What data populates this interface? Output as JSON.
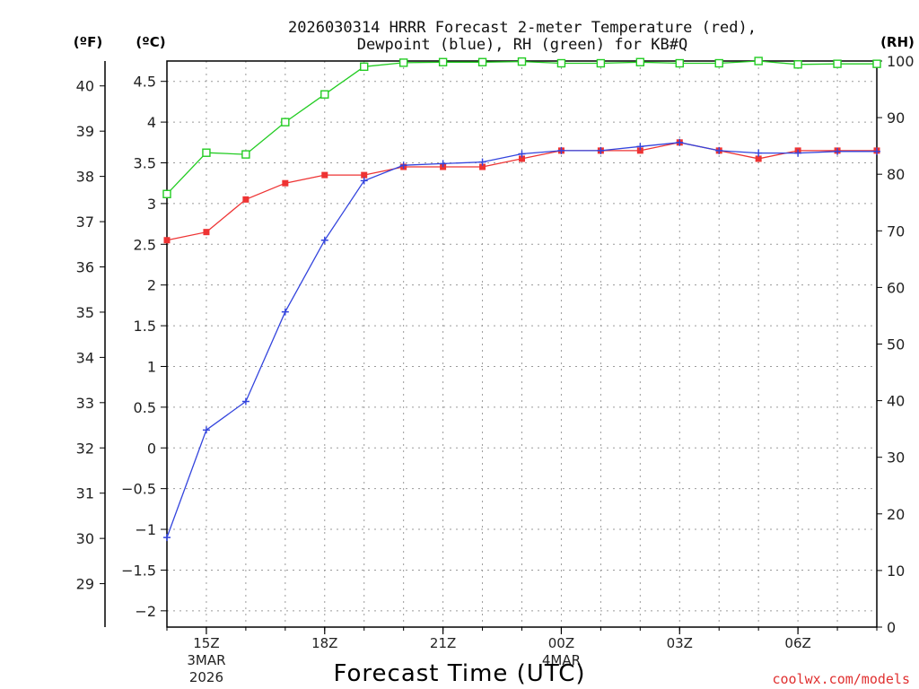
{
  "chart_data": {
    "type": "line",
    "title_line1": "2026030314 HRRR Forecast 2-meter Temperature (red),",
    "title_line2": "Dewpoint (blue), RH (green) for KB#Q",
    "xlabel": "Forecast Time (UTC)",
    "credit": "coolwx.com/models",
    "units": {
      "fahrenheit": "(ºF)",
      "celsius": "(ºC)",
      "rh": "(RH)"
    },
    "xlim_hours": [
      0,
      18
    ],
    "ylim_c": [
      -2.2,
      4.75
    ],
    "ylim_rh": [
      0,
      100
    ],
    "celsius_ticks": [
      -2,
      -1.5,
      -1,
      -0.5,
      0,
      0.5,
      1,
      1.5,
      2,
      2.5,
      3,
      3.5,
      4,
      4.5
    ],
    "fahrenheit_ticks": [
      29,
      30,
      31,
      32,
      33,
      34,
      35,
      36,
      37,
      38,
      39,
      40
    ],
    "rh_ticks": [
      0,
      10,
      20,
      30,
      40,
      50,
      60,
      70,
      80,
      90,
      100
    ],
    "x_ticks": [
      {
        "hour": 1,
        "label": "15Z",
        "sub1": "3MAR",
        "sub2": "2026"
      },
      {
        "hour": 4,
        "label": "18Z",
        "sub1": "",
        "sub2": ""
      },
      {
        "hour": 7,
        "label": "21Z",
        "sub1": "",
        "sub2": ""
      },
      {
        "hour": 10,
        "label": "00Z",
        "sub1": "4MAR",
        "sub2": ""
      },
      {
        "hour": 13,
        "label": "03Z",
        "sub1": "",
        "sub2": ""
      },
      {
        "hour": 16,
        "label": "06Z",
        "sub1": "",
        "sub2": ""
      }
    ],
    "series": [
      {
        "name": "Temperature (C)",
        "color": "#ee3333",
        "marker": "filled-square",
        "x": [
          0,
          1,
          2,
          3,
          4,
          5,
          6,
          7,
          8,
          9,
          10,
          11,
          12,
          13,
          14,
          15,
          16,
          17,
          18
        ],
        "values": [
          2.55,
          2.65,
          3.05,
          3.25,
          3.35,
          3.35,
          3.45,
          3.45,
          3.45,
          3.55,
          3.65,
          3.65,
          3.65,
          3.75,
          3.65,
          3.55,
          3.65,
          3.65,
          3.65
        ]
      },
      {
        "name": "Dewpoint (C)",
        "color": "#3344dd",
        "marker": "plus",
        "x": [
          0,
          1,
          2,
          3,
          4,
          5,
          6,
          7,
          8,
          9,
          10,
          11,
          12,
          13,
          14,
          15,
          16,
          17,
          18
        ],
        "values": [
          -1.1,
          0.22,
          0.57,
          1.67,
          2.55,
          3.28,
          3.47,
          3.49,
          3.51,
          3.61,
          3.65,
          3.65,
          3.7,
          3.75,
          3.65,
          3.62,
          3.62,
          3.64,
          3.64
        ]
      },
      {
        "name": "RH (%)",
        "color": "#22cc22",
        "marker": "open-square",
        "x": [
          0,
          1,
          2,
          3,
          4,
          5,
          6,
          7,
          8,
          9,
          10,
          11,
          12,
          13,
          14,
          15,
          16,
          17,
          18
        ],
        "values": [
          76.5,
          83.8,
          83.5,
          89.2,
          94.1,
          99.0,
          99.7,
          99.8,
          99.8,
          99.9,
          99.6,
          99.6,
          99.8,
          99.6,
          99.6,
          100,
          99.4,
          99.5,
          99.5
        ]
      }
    ]
  }
}
